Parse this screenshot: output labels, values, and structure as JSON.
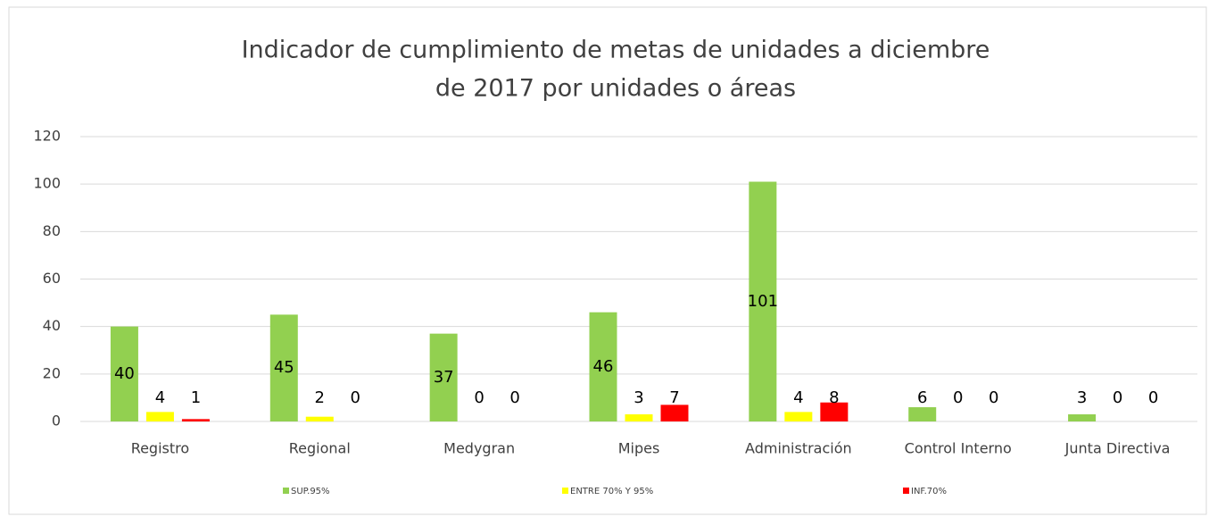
{
  "chart_data": {
    "type": "bar",
    "title": [
      "Indicador de cumplimiento de metas de unidades a diciembre",
      "de 2017 por unidades o áreas"
    ],
    "categories": [
      "Registro",
      "Regional",
      "Medygran",
      "Mipes",
      "Administración",
      "Control Interno",
      "Junta Directiva"
    ],
    "series": [
      {
        "name": "SUP.95%",
        "color": "#92d050",
        "values": [
          40,
          45,
          37,
          46,
          101,
          6,
          3
        ]
      },
      {
        "name": "ENTRE 70% Y 95%",
        "color": "#ffff00",
        "values": [
          4,
          2,
          0,
          3,
          4,
          0,
          0
        ]
      },
      {
        "name": "INF.70%",
        "color": "#ff0000",
        "values": [
          1,
          0,
          0,
          7,
          8,
          0,
          0
        ]
      }
    ],
    "ylim": [
      0,
      120
    ],
    "yticks": [
      0,
      20,
      40,
      60,
      80,
      100,
      120
    ],
    "grid": true,
    "legend": "bottom"
  }
}
